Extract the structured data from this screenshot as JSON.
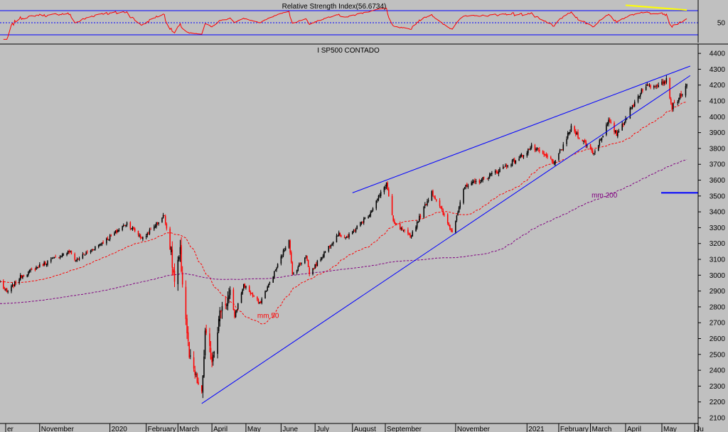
{
  "chart_data": [
    {
      "type": "line",
      "title": "Relative Strength Index(56.6734)",
      "value": 56.6734,
      "yticks": [
        50
      ],
      "ylim": [
        20,
        80
      ],
      "reference_levels": [
        70,
        50,
        30
      ],
      "colors": {
        "rsi": "#ff0000",
        "trendline": "#ffff00",
        "levels": "#0000ff"
      },
      "trendline": {
        "from": [
          "2021-04-01",
          79
        ],
        "to": [
          "2021-05-25",
          71
        ]
      }
    },
    {
      "type": "candlestick",
      "title": "I SP500 CONTADO",
      "ylim": [
        2100,
        4450
      ],
      "yticks": [
        2100,
        2200,
        2300,
        2400,
        2500,
        2600,
        2700,
        2800,
        2900,
        3000,
        3100,
        3200,
        3300,
        3400,
        3500,
        3600,
        3700,
        3800,
        3900,
        4000,
        4100,
        4200,
        4300,
        4400
      ],
      "xticks": [
        {
          "label": "er",
          "date": "2019-10-02"
        },
        {
          "label": "November",
          "date": "2019-11-01"
        },
        {
          "label": "2020",
          "date": "2020-01-02"
        },
        {
          "label": "February",
          "date": "2020-02-03"
        },
        {
          "label": "March",
          "date": "2020-03-02"
        },
        {
          "label": "April",
          "date": "2020-04-01"
        },
        {
          "label": "May",
          "date": "2020-05-01"
        },
        {
          "label": "June",
          "date": "2020-06-01"
        },
        {
          "label": "July",
          "date": "2020-07-01"
        },
        {
          "label": "August",
          "date": "2020-08-03"
        },
        {
          "label": "September",
          "date": "2020-09-01"
        },
        {
          "label": "November",
          "date": "2020-11-02"
        },
        {
          "label": "2021",
          "date": "2021-01-04"
        },
        {
          "label": "February",
          "date": "2021-02-01"
        },
        {
          "label": "March",
          "date": "2021-03-01"
        },
        {
          "label": "April",
          "date": "2021-04-01"
        },
        {
          "label": "May",
          "date": "2021-05-03"
        },
        {
          "label": "Ju",
          "date": "2021-06-01"
        }
      ],
      "price_anchors": [
        [
          "2019-09-27",
          2960
        ],
        [
          "2019-10-03",
          2890
        ],
        [
          "2019-10-15",
          2990
        ],
        [
          "2019-11-01",
          3060
        ],
        [
          "2019-11-27",
          3150
        ],
        [
          "2019-12-03",
          3095
        ],
        [
          "2019-12-31",
          3230
        ],
        [
          "2020-01-17",
          3330
        ],
        [
          "2020-01-31",
          3230
        ],
        [
          "2020-02-19",
          3380
        ],
        [
          "2020-02-25",
          3130
        ],
        [
          "2020-02-28",
          2950
        ],
        [
          "2020-03-04",
          3130
        ],
        [
          "2020-03-12",
          2480
        ],
        [
          "2020-03-16",
          2390
        ],
        [
          "2020-03-23",
          2240
        ],
        [
          "2020-03-26",
          2630
        ],
        [
          "2020-04-01",
          2470
        ],
        [
          "2020-04-09",
          2790
        ],
        [
          "2020-04-17",
          2870
        ],
        [
          "2020-04-21",
          2740
        ],
        [
          "2020-04-29",
          2940
        ],
        [
          "2020-05-13",
          2820
        ],
        [
          "2020-05-27",
          3030
        ],
        [
          "2020-06-08",
          3230
        ],
        [
          "2020-06-11",
          3000
        ],
        [
          "2020-06-23",
          3130
        ],
        [
          "2020-06-26",
          3010
        ],
        [
          "2020-07-21",
          3260
        ],
        [
          "2020-07-30",
          3240
        ],
        [
          "2020-08-18",
          3390
        ],
        [
          "2020-09-02",
          3580
        ],
        [
          "2020-09-08",
          3330
        ],
        [
          "2020-09-23",
          3240
        ],
        [
          "2020-10-12",
          3530
        ],
        [
          "2020-10-30",
          3270
        ],
        [
          "2020-11-09",
          3550
        ],
        [
          "2020-11-30",
          3620
        ],
        [
          "2020-12-28",
          3740
        ],
        [
          "2021-01-08",
          3810
        ],
        [
          "2021-01-29",
          3710
        ],
        [
          "2021-02-12",
          3930
        ],
        [
          "2021-03-04",
          3770
        ],
        [
          "2021-03-17",
          3970
        ],
        [
          "2021-03-24",
          3890
        ],
        [
          "2021-04-16",
          4180
        ],
        [
          "2021-05-07",
          4230
        ],
        [
          "2021-05-12",
          4060
        ],
        [
          "2021-05-25",
          4190
        ]
      ],
      "moving_averages": [
        {
          "name": "mm 50",
          "color": "#ff0000",
          "style": "dashed",
          "label_date": "2020-05-11",
          "label_value": 2730
        },
        {
          "name": "mm 200",
          "color": "#800080",
          "style": "dashed",
          "label_date": "2021-03-02",
          "label_value": 3490
        }
      ],
      "trendlines": [
        {
          "from": [
            "2020-03-23",
            2190
          ],
          "to": [
            "2021-05-28",
            4260
          ],
          "color": "#0000ff"
        },
        {
          "from": [
            "2020-08-03",
            3520
          ],
          "to": [
            "2021-05-28",
            4320
          ],
          "color": "#0000ff"
        }
      ],
      "horizontal_marker": {
        "value": 3520,
        "color": "#0000ff"
      }
    }
  ]
}
